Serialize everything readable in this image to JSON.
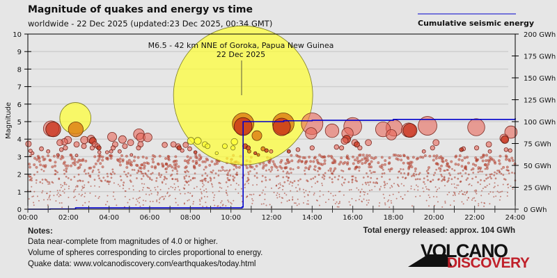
{
  "header": {
    "title": "Magnitude of quakes and energy vs time",
    "subtitle": "worldwide - 22 Dec 2025 (updated:23 Dec 2025, 00:34 GMT)"
  },
  "legend": {
    "label": "Cumulative seismic energy",
    "color": "#0000cc"
  },
  "notes": {
    "heading": "Notes:",
    "lines": [
      "Data near-complete from magnitudes of 4.0 or higher.",
      "Volume of spheres corresponding to circles proportional to energy.",
      "Quake data: www.volcanodiscovery.com/earthquakes/today.html"
    ],
    "total": "Total energy released: approx. 104 GWh"
  },
  "logo": {
    "line1": "VOLCANO",
    "line2": "DISCOVERY"
  },
  "chart_data": {
    "type": "scatter",
    "title": "Magnitude of quakes and energy vs time",
    "ylabel": "Magnitude",
    "y2label": "",
    "xlim": [
      0,
      24
    ],
    "ylim": [
      0,
      10
    ],
    "y2lim": [
      0,
      200
    ],
    "grid": true,
    "legend_position": "top-right",
    "x_tick_labels": [
      "00:00",
      "02:00",
      "04:00",
      "06:00",
      "08:00",
      "10:00",
      "12:00",
      "14:00",
      "16:00",
      "18:00",
      "20:00",
      "22:00",
      "24:00"
    ],
    "y_tick_labels": [
      "0",
      "1",
      "2",
      "3",
      "4",
      "5",
      "6",
      "7",
      "8",
      "9",
      "10"
    ],
    "y2_tick_labels": [
      "0 GWh",
      "25 GWh",
      "50 GWh",
      "75 GWh",
      "100 GWh",
      "125 GWh",
      "150 GWh",
      "175 GWh",
      "200 GWh"
    ],
    "colors": {
      "salmon": "#e8675a",
      "red": "#c8301a",
      "orange": "#dc7a10",
      "yellow": "#ffff30"
    },
    "annotation": {
      "lines": [
        "M6.5 - 42 km NNE of Goroka, Papua New Guinea",
        "22 Dec 2025"
      ],
      "time": 10.6,
      "magnitude": 6.5
    },
    "quakes_columns": [
      "time_h",
      "magnitude",
      "color"
    ],
    "quakes": [
      [
        10.6,
        6.5,
        "yellow"
      ],
      [
        2.34,
        5.2,
        "yellow"
      ],
      [
        0.03,
        3.73,
        "salmon"
      ],
      [
        0.13,
        3.33,
        "salmon"
      ],
      [
        0.23,
        3.2,
        "salmon"
      ],
      [
        0.67,
        3.45,
        "salmon"
      ],
      [
        1.0,
        3.3,
        "salmon"
      ],
      [
        1.15,
        4.6,
        "salmon"
      ],
      [
        1.25,
        4.56,
        "red"
      ],
      [
        1.48,
        3.1,
        "salmon"
      ],
      [
        1.58,
        3.8,
        "salmon"
      ],
      [
        1.65,
        3.4,
        "salmon"
      ],
      [
        1.8,
        3.85,
        "salmon"
      ],
      [
        1.85,
        3.5,
        "salmon"
      ],
      [
        1.97,
        3.95,
        "salmon"
      ],
      [
        2.36,
        4.56,
        "orange"
      ],
      [
        2.4,
        3.7,
        "salmon"
      ],
      [
        2.4,
        3.07,
        "salmon"
      ],
      [
        2.78,
        3.95,
        "salmon"
      ],
      [
        2.76,
        3.6,
        "salmon"
      ],
      [
        3.11,
        4.0,
        "salmon"
      ],
      [
        3.2,
        3.9,
        "red"
      ],
      [
        3.3,
        3.7,
        "salmon"
      ],
      [
        3.17,
        3.5,
        "salmon"
      ],
      [
        3.43,
        3.6,
        "salmon"
      ],
      [
        3.5,
        3.5,
        "red"
      ],
      [
        3.52,
        3.25,
        "salmon"
      ],
      [
        3.9,
        3.25,
        "salmon"
      ],
      [
        4.1,
        3.3,
        "salmon"
      ],
      [
        4.15,
        4.13,
        "salmon"
      ],
      [
        4.2,
        3.5,
        "salmon"
      ],
      [
        4.3,
        3.7,
        "salmon"
      ],
      [
        4.52,
        3.3,
        "salmon"
      ],
      [
        4.66,
        3.98,
        "salmon"
      ],
      [
        4.78,
        3.6,
        "salmon"
      ],
      [
        5.06,
        3.8,
        "salmon"
      ],
      [
        5.1,
        3.1,
        "salmon"
      ],
      [
        5.47,
        4.28,
        "salmon"
      ],
      [
        5.56,
        4.1,
        "salmon"
      ],
      [
        5.55,
        3.7,
        "salmon"
      ],
      [
        5.45,
        3.5,
        "salmon"
      ],
      [
        5.9,
        4.1,
        "salmon"
      ],
      [
        6.74,
        3.67,
        "salmon"
      ],
      [
        7.17,
        3.7,
        "salmon"
      ],
      [
        7.4,
        3.6,
        "salmon"
      ],
      [
        7.45,
        3.5,
        "red"
      ],
      [
        7.6,
        3.35,
        "salmon"
      ],
      [
        7.77,
        3.67,
        "salmon"
      ],
      [
        7.97,
        3.45,
        "salmon"
      ],
      [
        8.03,
        3.9,
        "yellow"
      ],
      [
        8.37,
        3.9,
        "yellow"
      ],
      [
        8.25,
        3.25,
        "red"
      ],
      [
        8.72,
        3.7,
        "yellow"
      ],
      [
        8.85,
        3.6,
        "yellow"
      ],
      [
        9.3,
        3.2,
        "yellow"
      ],
      [
        9.7,
        3.6,
        "yellow"
      ],
      [
        10.17,
        3.85,
        "yellow"
      ],
      [
        10.1,
        3.5,
        "yellow"
      ],
      [
        10.6,
        4.88,
        "orange"
      ],
      [
        10.6,
        4.72,
        "red"
      ],
      [
        11.28,
        4.2,
        "orange"
      ],
      [
        10.7,
        3.6,
        "red"
      ],
      [
        10.85,
        3.5,
        "red"
      ],
      [
        10.9,
        3.3,
        "orange"
      ],
      [
        11.2,
        3.2,
        "red"
      ],
      [
        11.35,
        3.1,
        "orange"
      ],
      [
        11.58,
        3.45,
        "orange"
      ],
      [
        11.75,
        3.35,
        "red"
      ],
      [
        11.98,
        3.3,
        "salmon"
      ],
      [
        12.58,
        4.88,
        "orange"
      ],
      [
        12.5,
        4.7,
        "red"
      ],
      [
        12.85,
        3.3,
        "red"
      ],
      [
        13.3,
        3.4,
        "salmon"
      ],
      [
        14.0,
        4.88,
        "salmon"
      ],
      [
        13.95,
        4.33,
        "salmon"
      ],
      [
        14.0,
        3.5,
        "salmon"
      ],
      [
        14.98,
        4.48,
        "salmon"
      ],
      [
        15.2,
        3.55,
        "salmon"
      ],
      [
        15.45,
        3.5,
        "salmon"
      ],
      [
        15.74,
        4.33,
        "salmon"
      ],
      [
        15.7,
        4.0,
        "red"
      ],
      [
        15.6,
        3.9,
        "salmon"
      ],
      [
        16.0,
        4.72,
        "salmon"
      ],
      [
        16.1,
        3.8,
        "salmon"
      ],
      [
        16.2,
        3.7,
        "red"
      ],
      [
        16.35,
        3.5,
        "salmon"
      ],
      [
        16.77,
        3.8,
        "salmon"
      ],
      [
        17.49,
        4.56,
        "salmon"
      ],
      [
        18.04,
        4.64,
        "salmon"
      ],
      [
        17.9,
        4.25,
        "salmon"
      ],
      [
        18.75,
        4.52,
        "salmon"
      ],
      [
        18.82,
        4.5,
        "red"
      ],
      [
        19.68,
        4.76,
        "salmon"
      ],
      [
        20.1,
        3.8,
        "salmon"
      ],
      [
        19.93,
        3.5,
        "salmon"
      ],
      [
        19.5,
        3.3,
        "salmon"
      ],
      [
        21.35,
        3.4,
        "red"
      ],
      [
        21.45,
        3.45,
        "salmon"
      ],
      [
        22.1,
        3.5,
        "salmon"
      ],
      [
        22.08,
        4.68,
        "salmon"
      ],
      [
        22.7,
        3.7,
        "salmon"
      ],
      [
        22.75,
        3.3,
        "salmon"
      ],
      [
        23.49,
        3.97,
        "red"
      ],
      [
        23.45,
        4.05,
        "salmon"
      ],
      [
        23.79,
        4.4,
        "salmon"
      ],
      [
        23.55,
        3.4,
        "salmon"
      ],
      [
        23.75,
        3.35,
        "salmon"
      ]
    ],
    "series": [
      {
        "name": "Cumulative seismic energy",
        "axis": "right",
        "unit": "GWh",
        "points": [
          [
            0,
            0
          ],
          [
            1.1,
            0.3
          ],
          [
            2.35,
            1.5
          ],
          [
            10.55,
            2.5
          ],
          [
            10.6,
            100
          ],
          [
            12.6,
            101
          ],
          [
            14,
            101.5
          ],
          [
            18,
            102.5
          ],
          [
            24,
            104
          ]
        ]
      }
    ]
  }
}
